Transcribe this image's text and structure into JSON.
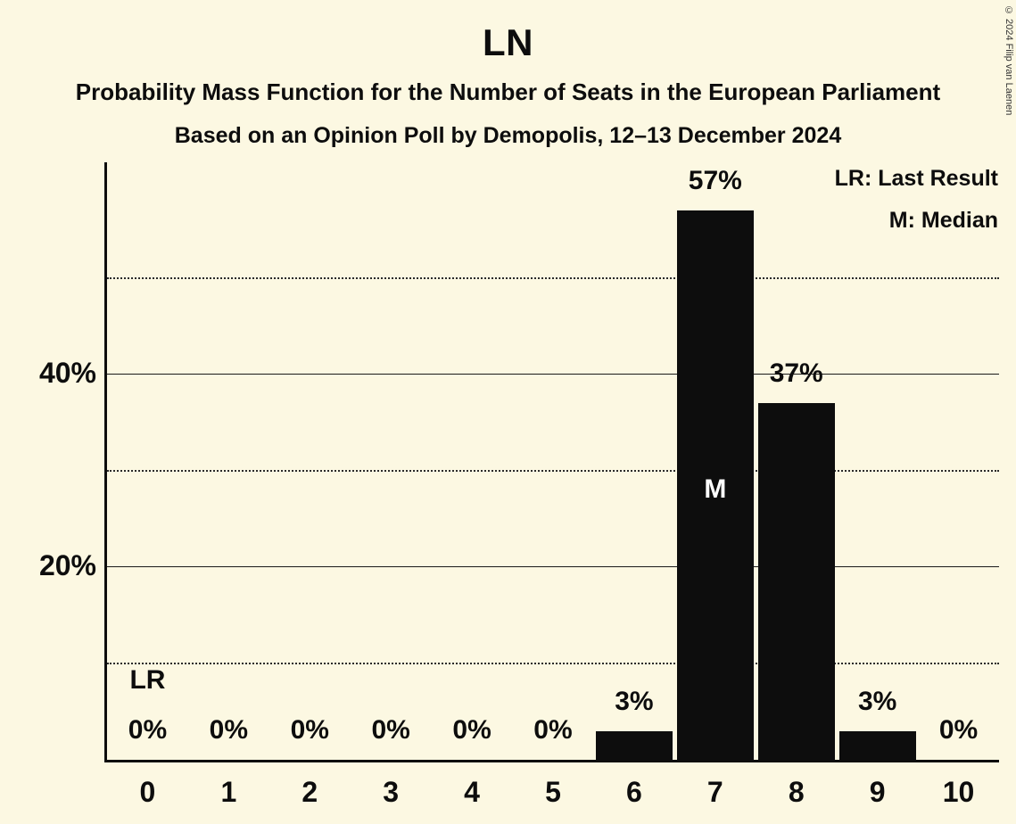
{
  "header": {
    "title": "LN",
    "subtitle1": "Probability Mass Function for the Number of Seats in the European Parliament",
    "subtitle2": "Based on an Opinion Poll by Demopolis, 12–13 December 2024"
  },
  "legend": {
    "lr": "LR: Last Result",
    "m": "M: Median"
  },
  "copyright": "© 2024 Filip van Laenen",
  "chart_data": {
    "type": "bar",
    "title": "LN",
    "xlabel": "",
    "ylabel": "",
    "categories": [
      "0",
      "1",
      "2",
      "3",
      "4",
      "5",
      "6",
      "7",
      "8",
      "9",
      "10"
    ],
    "values": [
      0,
      0,
      0,
      0,
      0,
      0,
      3,
      57,
      37,
      3,
      0
    ],
    "value_labels": [
      "0%",
      "0%",
      "0%",
      "0%",
      "0%",
      "0%",
      "3%",
      "57%",
      "37%",
      "3%",
      "0%"
    ],
    "ylim": [
      0,
      62
    ],
    "yticks": [
      {
        "value": 20,
        "label": "20%"
      },
      {
        "value": 40,
        "label": "40%"
      }
    ],
    "gridlines": {
      "dotted_values": [
        10,
        30,
        50
      ],
      "solid_values": [
        20,
        40
      ]
    },
    "annotations": [
      {
        "category_index": 0,
        "text": "LR",
        "placement": "above-value-label"
      },
      {
        "category_index": 7,
        "text": "M",
        "placement": "inside-bar"
      }
    ],
    "legend_position": "top-right",
    "bar_color": "#0d0d0d",
    "background_color": "#fcf8e2",
    "median_label_color": "#ffffff"
  }
}
